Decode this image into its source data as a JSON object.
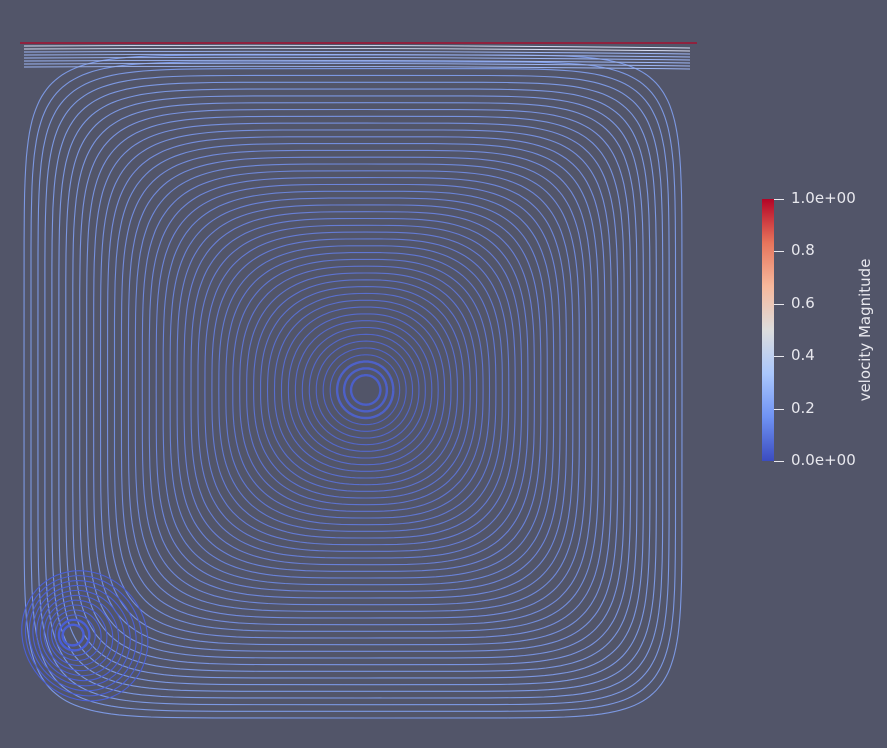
{
  "colorbar": {
    "title": "velocity Magnitude",
    "ticks": [
      {
        "label": "1.0e+00",
        "value": 1.0
      },
      {
        "label": "0.8",
        "value": 0.8
      },
      {
        "label": "0.6",
        "value": 0.6
      },
      {
        "label": "0.4",
        "value": 0.4
      },
      {
        "label": "0.2",
        "value": 0.2
      },
      {
        "label": "0.0e+00",
        "value": 0.0
      }
    ],
    "colormap": [
      "#3b4cc0",
      "#6f92f3",
      "#aac7fd",
      "#dddddd",
      "#f7b89c",
      "#e7745b",
      "#b40426"
    ]
  },
  "colors": {
    "background": "#525569",
    "lid": "#b40426",
    "low_speed": "#4a63d3",
    "mid_speed": "#8db0fe"
  }
}
